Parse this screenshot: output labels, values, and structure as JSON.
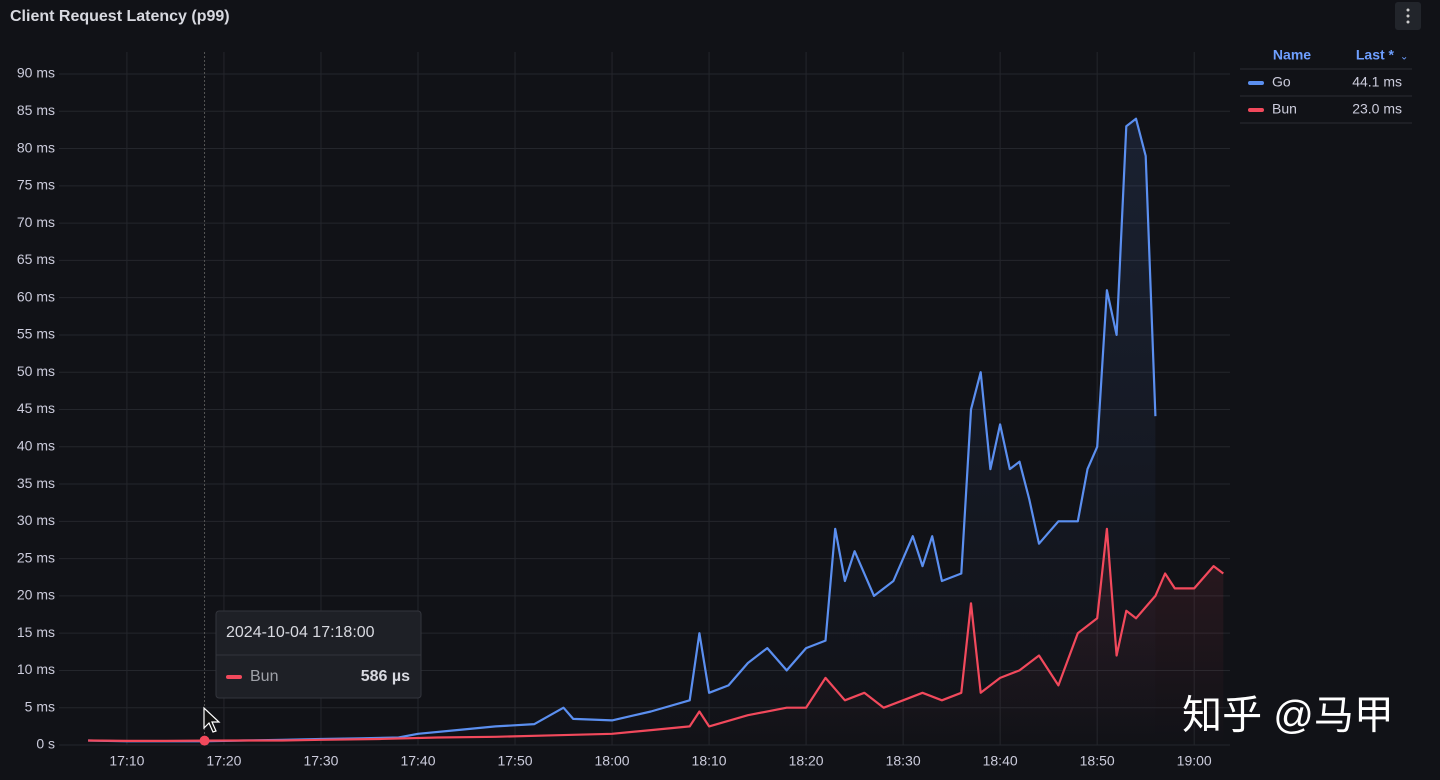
{
  "panel": {
    "title": "Client Request Latency (p99)",
    "watermark": "知乎 @马甲"
  },
  "legend": {
    "columns": [
      "Name",
      "Last *"
    ],
    "last_labels": [
      "44.1 ms",
      "23.0 ms"
    ]
  },
  "tooltip": {
    "time": "2024-10-04 17:18:00",
    "series": "Bun",
    "value_label": "586 µs",
    "x": "17:18",
    "value": 0.586
  },
  "chart_data": {
    "type": "line",
    "xlim": [
      "17:03",
      "19:04"
    ],
    "xticks": [
      "17:10",
      "17:20",
      "17:30",
      "17:40",
      "17:50",
      "18:00",
      "18:10",
      "18:20",
      "18:30",
      "18:40",
      "18:50",
      "19:00"
    ],
    "ylim": [
      0,
      90
    ],
    "yticks": [
      {
        "value": 0,
        "label": "0 s"
      },
      {
        "value": 5,
        "label": "5 ms"
      },
      {
        "value": 10,
        "label": "10 ms"
      },
      {
        "value": 15,
        "label": "15 ms"
      },
      {
        "value": 20,
        "label": "20 ms"
      },
      {
        "value": 25,
        "label": "25 ms"
      },
      {
        "value": 30,
        "label": "30 ms"
      },
      {
        "value": 35,
        "label": "35 ms"
      },
      {
        "value": 40,
        "label": "40 ms"
      },
      {
        "value": 45,
        "label": "45 ms"
      },
      {
        "value": 50,
        "label": "50 ms"
      },
      {
        "value": 55,
        "label": "55 ms"
      },
      {
        "value": 60,
        "label": "60 ms"
      },
      {
        "value": 65,
        "label": "65 ms"
      },
      {
        "value": 70,
        "label": "70 ms"
      },
      {
        "value": 75,
        "label": "75 ms"
      },
      {
        "value": 80,
        "label": "80 ms"
      },
      {
        "value": 85,
        "label": "85 ms"
      },
      {
        "value": 90,
        "label": "90 ms"
      }
    ],
    "grid": true,
    "series": [
      {
        "name": "Go",
        "color": "#5b8ff0",
        "x": [
          "17:06",
          "17:10",
          "17:14",
          "17:18",
          "17:22",
          "17:26",
          "17:30",
          "17:34",
          "17:38",
          "17:40",
          "17:44",
          "17:48",
          "17:52",
          "17:55",
          "17:56",
          "18:00",
          "18:04",
          "18:08",
          "18:09",
          "18:10",
          "18:12",
          "18:14",
          "18:16",
          "18:18",
          "18:20",
          "18:22",
          "18:23",
          "18:24",
          "18:25",
          "18:27",
          "18:29",
          "18:31",
          "18:32",
          "18:33",
          "18:34",
          "18:36",
          "18:37",
          "18:38",
          "18:39",
          "18:40",
          "18:41",
          "18:42",
          "18:43",
          "18:44",
          "18:46",
          "18:48",
          "18:49",
          "18:50",
          "18:51",
          "18:52",
          "18:53",
          "18:54",
          "18:55",
          "18:56"
        ],
        "values": [
          0.6,
          0.5,
          0.5,
          0.5,
          0.6,
          0.7,
          0.8,
          0.9,
          1.0,
          1.5,
          2.0,
          2.5,
          2.8,
          5.0,
          3.5,
          3.3,
          4.5,
          6.0,
          15,
          7,
          8,
          11,
          13,
          10,
          13,
          14,
          29,
          22,
          26,
          20,
          22,
          28,
          24,
          28,
          22,
          23,
          45,
          50,
          37,
          43,
          37,
          38,
          33,
          27,
          30,
          30,
          37,
          40,
          61,
          55,
          83,
          84,
          79,
          44.1
        ]
      },
      {
        "name": "Bun",
        "color": "#f2495c",
        "x": [
          "17:06",
          "17:10",
          "17:14",
          "17:18",
          "17:22",
          "17:26",
          "17:30",
          "17:36",
          "17:42",
          "17:48",
          "17:54",
          "18:00",
          "18:04",
          "18:08",
          "18:09",
          "18:10",
          "18:14",
          "18:18",
          "18:20",
          "18:22",
          "18:24",
          "18:26",
          "18:28",
          "18:30",
          "18:32",
          "18:34",
          "18:36",
          "18:37",
          "18:38",
          "18:40",
          "18:42",
          "18:44",
          "18:46",
          "18:48",
          "18:50",
          "18:51",
          "18:52",
          "18:53",
          "18:54",
          "18:56",
          "18:57",
          "18:58",
          "19:00",
          "19:02",
          "19:03"
        ],
        "values": [
          0.6,
          0.55,
          0.55,
          0.586,
          0.6,
          0.6,
          0.7,
          0.8,
          1.0,
          1.1,
          1.3,
          1.5,
          2.0,
          2.5,
          4.5,
          2.5,
          4,
          5,
          5,
          9,
          6,
          7,
          5,
          6,
          7,
          6,
          7,
          19,
          7,
          9,
          10,
          12,
          8,
          15,
          17,
          29,
          12,
          18,
          17,
          20,
          23,
          21,
          21,
          24,
          23.0
        ]
      }
    ]
  }
}
